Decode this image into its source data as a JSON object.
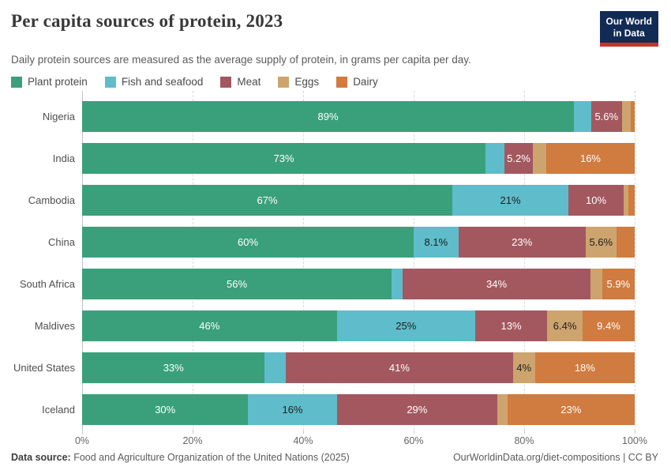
{
  "header": {
    "title": "Per capita sources of protein, 2023",
    "subtitle": "Daily protein sources are measured as the average supply of protein, in grams per capita per day.",
    "logo": {
      "line1": "Our World",
      "line2": "in Data"
    }
  },
  "colors": {
    "plant_protein": "#3aa07b",
    "fish_and_seafood": "#5fbcca",
    "meat": "#a3585f",
    "eggs": "#cda46e",
    "dairy": "#d07b40",
    "logo_navy": "#112b55",
    "logo_red": "#c5342c",
    "label_light": "#ffffff",
    "label_dark": "#202020"
  },
  "legend": [
    {
      "label": "Plant protein",
      "color": "#3aa07b"
    },
    {
      "label": "Fish and seafood",
      "color": "#5fbcca"
    },
    {
      "label": "Meat",
      "color": "#a3585f"
    },
    {
      "label": "Eggs",
      "color": "#cda46e"
    },
    {
      "label": "Dairy",
      "color": "#d07b40"
    }
  ],
  "chart_data": {
    "type": "bar",
    "stacked": true,
    "orientation": "horizontal",
    "unit": "%",
    "xlim": [
      0,
      100
    ],
    "grid": "dashed-vertical",
    "categories": [
      "Nigeria",
      "India",
      "Cambodia",
      "China",
      "South Africa",
      "Maldives",
      "United States",
      "Iceland"
    ],
    "series": [
      {
        "name": "Plant protein",
        "color": "#3aa07b",
        "label_color": "#ffffff",
        "values": [
          89,
          73,
          67,
          60,
          56,
          46,
          33,
          30
        ],
        "labels": [
          "89%",
          "73%",
          "67%",
          "60%",
          "56%",
          "46%",
          "33%",
          "30%"
        ]
      },
      {
        "name": "Fish and seafood",
        "color": "#5fbcca",
        "label_color": "#202020",
        "values": [
          3.1,
          3.4,
          21,
          8.1,
          2.0,
          25,
          3.8,
          16
        ],
        "labels": [
          "",
          "",
          "21%",
          "8.1%",
          "",
          "25%",
          "",
          "16%"
        ]
      },
      {
        "name": "Meat",
        "color": "#a3585f",
        "label_color": "#ffffff",
        "values": [
          5.6,
          5.2,
          10,
          23,
          34,
          13,
          41,
          29
        ],
        "labels": [
          "5.6%",
          "5.2%",
          "10%",
          "23%",
          "34%",
          "13%",
          "41%",
          "29%"
        ]
      },
      {
        "name": "Eggs",
        "color": "#cda46e",
        "label_color": "#202020",
        "values": [
          1.6,
          2.4,
          0.8,
          5.6,
          2.1,
          6.4,
          4,
          1.8
        ],
        "labels": [
          "",
          "",
          "",
          "5.6%",
          "",
          "6.4%",
          "4%",
          ""
        ]
      },
      {
        "name": "Dairy",
        "color": "#d07b40",
        "label_color": "#ffffff",
        "values": [
          0.7,
          16,
          1.2,
          3.3,
          5.9,
          9.4,
          18,
          23
        ],
        "labels": [
          "",
          "16%",
          "",
          "",
          "5.9%",
          "9.4%",
          "18%",
          "23%"
        ]
      }
    ],
    "x_ticks": [
      {
        "value": 0,
        "label": "0%"
      },
      {
        "value": 20,
        "label": "20%"
      },
      {
        "value": 40,
        "label": "40%"
      },
      {
        "value": 60,
        "label": "60%"
      },
      {
        "value": 80,
        "label": "80%"
      },
      {
        "value": 100,
        "label": "100%"
      }
    ]
  },
  "footer": {
    "datasource_label": "Data source:",
    "datasource_text": "Food and Agriculture Organization of the United Nations (2025)",
    "link": "OurWorldinData.org/diet-compositions | CC BY"
  }
}
